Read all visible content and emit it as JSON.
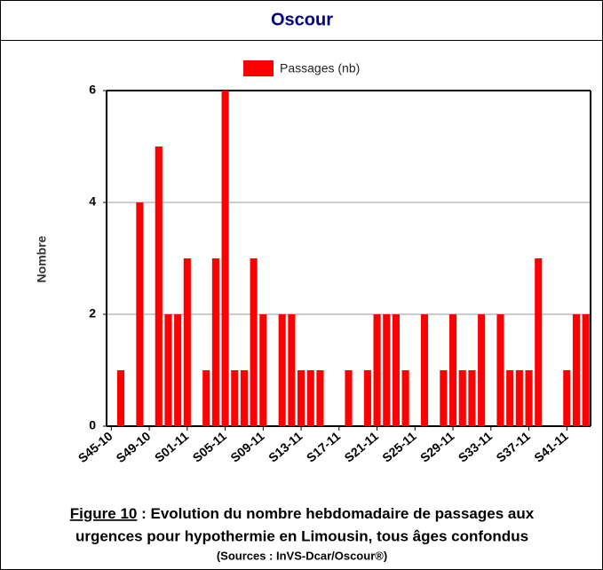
{
  "chart_data": {
    "type": "bar",
    "title": "Oscour",
    "legend": "Passages (nb)",
    "y_label": "Nombre",
    "color": "#ff0000",
    "categories": [
      "S45-10",
      null,
      null,
      null,
      "S49-10",
      null,
      null,
      null,
      "S01-11",
      null,
      null,
      null,
      "S05-11",
      null,
      null,
      null,
      "S09-11",
      null,
      null,
      null,
      "S13-11",
      null,
      null,
      null,
      "S17-11",
      null,
      null,
      null,
      "S21-11",
      null,
      null,
      null,
      "S25-11",
      null,
      null,
      null,
      "S29-11",
      null,
      null,
      null,
      "S33-11",
      null,
      null,
      null,
      "S37-11",
      null,
      null,
      null,
      "S41-11",
      null,
      null
    ],
    "values": [
      0,
      1,
      0,
      4,
      0,
      5,
      2,
      2,
      3,
      0,
      1,
      3,
      6,
      1,
      1,
      3,
      2,
      0,
      2,
      2,
      1,
      1,
      1,
      0,
      0,
      1,
      0,
      1,
      2,
      2,
      2,
      1,
      0,
      2,
      0,
      1,
      2,
      1,
      1,
      2,
      0,
      2,
      1,
      1,
      1,
      3,
      0,
      0,
      1,
      2,
      2
    ],
    "ylim": [
      0,
      6
    ],
    "yticks": [
      0,
      2,
      4,
      6
    ],
    "grid": true,
    "caption": {
      "figure": "Figure 10",
      "line1": " : Evolution du nombre hebdomadaire de passages aux",
      "line2": "urgences pour hypothermie en Limousin, tous âges confondus",
      "sources": "(Sources : InVS-Dcar/Oscour®)"
    }
  }
}
